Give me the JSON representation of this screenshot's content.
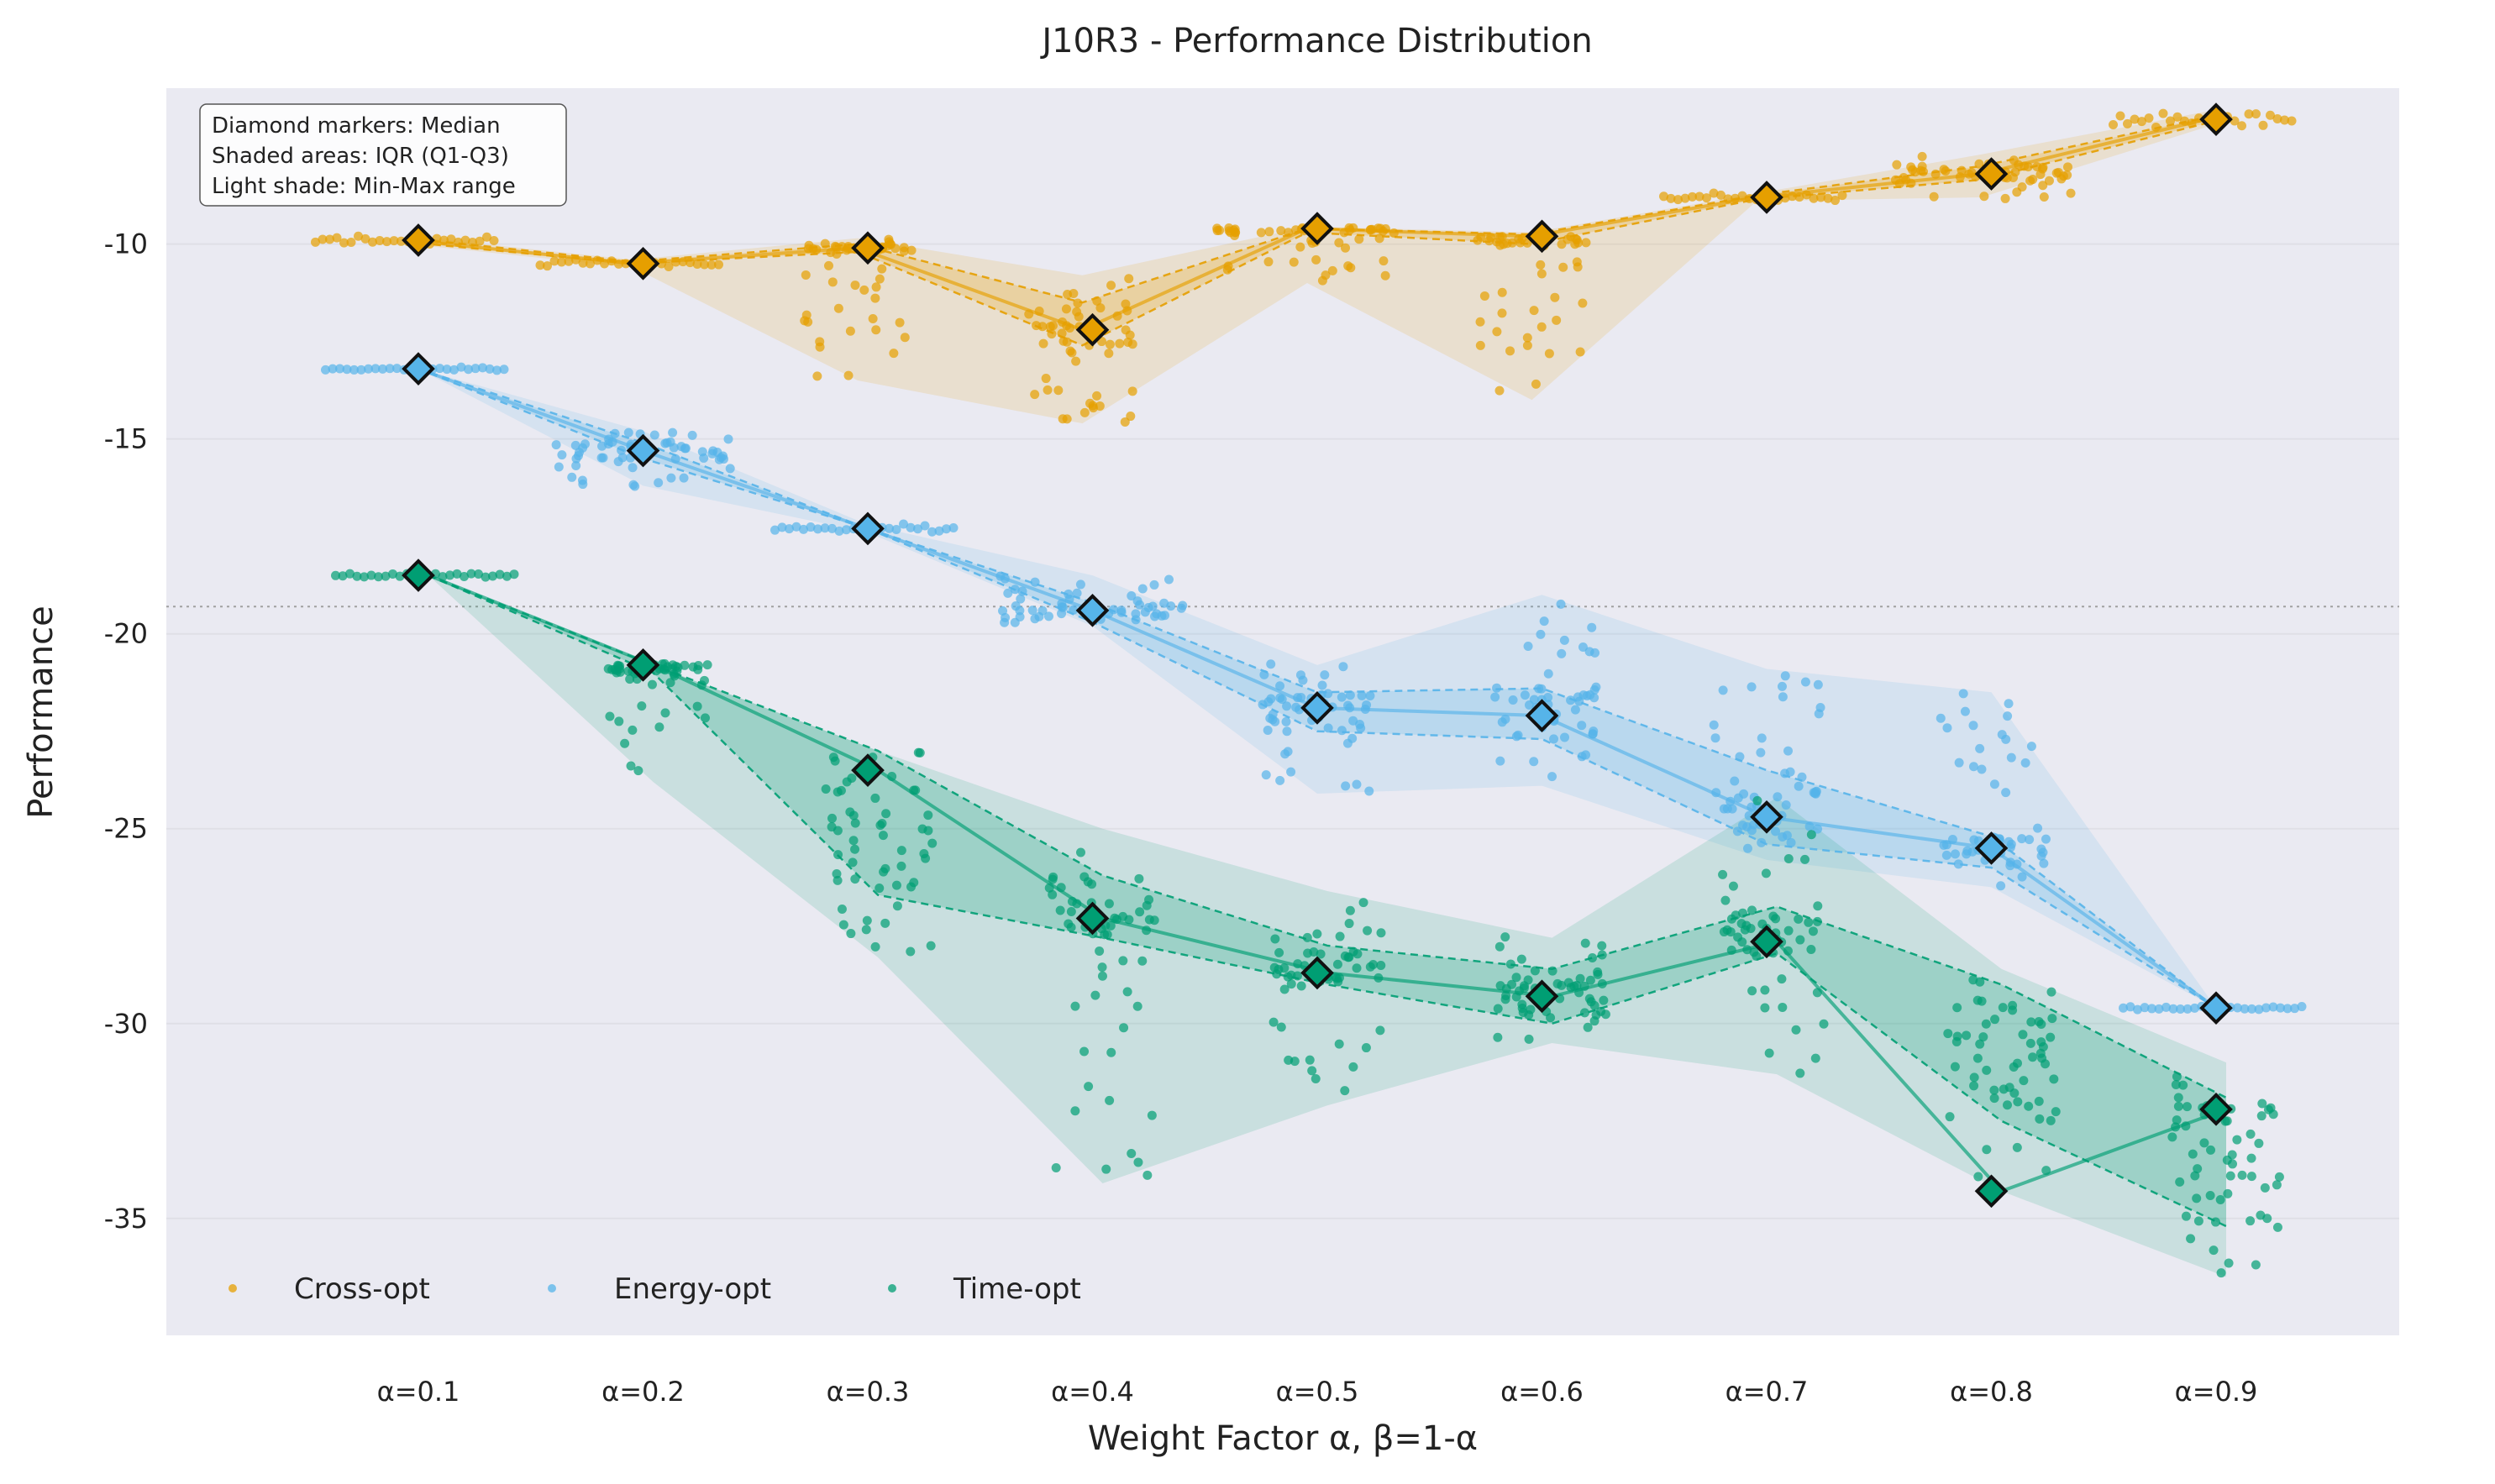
{
  "chart_data": {
    "type": "scatter",
    "title": "J10R3 - Performance Distribution",
    "xlabel": "Weight Factor α, β=1-α",
    "ylabel": "Performance",
    "categories": [
      "α=0.1",
      "α=0.2",
      "α=0.3",
      "α=0.4",
      "α=0.5",
      "α=0.6",
      "α=0.7",
      "α=0.8",
      "α=0.9"
    ],
    "ylim": [
      -38,
      -6
    ],
    "yticks": [
      -10,
      -15,
      -20,
      -25,
      -30,
      -35
    ],
    "ytick_labels": [
      "-10",
      "-15",
      "-20",
      "-25",
      "-30",
      "-35"
    ],
    "reference_line_y": -19.3,
    "grid": true,
    "legend_position": "bottom-left",
    "annotation": [
      "Diamond markers: Median",
      "Shaded areas: IQR (Q1-Q3)",
      "Light shade: Min-Max range"
    ],
    "series": [
      {
        "name": "Cross-opt",
        "color": "#E69F00",
        "median": [
          -9.9,
          -10.5,
          -10.1,
          -12.2,
          -9.6,
          -9.8,
          -8.8,
          -8.2,
          -6.8
        ],
        "q1": [
          -9.95,
          -10.5,
          -10.2,
          -12.6,
          -9.7,
          -10.0,
          -8.85,
          -8.35,
          -6.9
        ],
        "q3": [
          -9.85,
          -10.45,
          -10.0,
          -11.5,
          -9.6,
          -9.75,
          -8.75,
          -8.0,
          -6.75
        ],
        "min": [
          -10.0,
          -10.6,
          -13.5,
          -14.6,
          -11.0,
          -14.0,
          -8.9,
          -8.8,
          -7.0
        ],
        "max": [
          -9.8,
          -10.4,
          -9.85,
          -10.8,
          -9.55,
          -9.7,
          -8.7,
          -7.7,
          -6.6
        ]
      },
      {
        "name": "Energy-opt",
        "color": "#56B4E9",
        "median": [
          -13.2,
          -15.3,
          -17.3,
          -19.4,
          -21.9,
          -22.1,
          -24.7,
          -25.5,
          -29.6
        ],
        "q1": [
          -13.2,
          -15.5,
          -17.3,
          -19.7,
          -22.5,
          -22.7,
          -25.4,
          -26.0,
          -29.6
        ],
        "q3": [
          -13.2,
          -15.1,
          -17.3,
          -19.2,
          -21.5,
          -21.4,
          -23.5,
          -25.2,
          -29.6
        ],
        "min": [
          -13.2,
          -16.2,
          -17.4,
          -19.8,
          -24.1,
          -23.9,
          -25.8,
          -26.5,
          -29.6
        ],
        "max": [
          -13.2,
          -14.8,
          -17.2,
          -18.5,
          -20.8,
          -19.0,
          -20.9,
          -21.5,
          -29.6
        ]
      },
      {
        "name": "Time-opt",
        "color": "#009E73",
        "median": [
          -18.5,
          -20.8,
          -23.5,
          -27.3,
          -28.7,
          -29.3,
          -27.9,
          -34.3,
          -32.2
        ],
        "q1": [
          -18.5,
          -21.0,
          -26.7,
          -27.8,
          -29.0,
          -30.0,
          -28.2,
          -32.5,
          -35.2
        ],
        "q3": [
          -18.5,
          -20.8,
          -23.0,
          -26.2,
          -28.0,
          -28.6,
          -27.0,
          -29.0,
          -31.9
        ],
        "min": [
          -18.5,
          -23.8,
          -28.3,
          -34.1,
          -32.1,
          -30.5,
          -31.3,
          -34.3,
          -36.5
        ],
        "max": [
          -18.5,
          -20.8,
          -23.0,
          -25.0,
          -26.6,
          -27.8,
          -24.2,
          -28.6,
          -31.0
        ]
      }
    ]
  }
}
